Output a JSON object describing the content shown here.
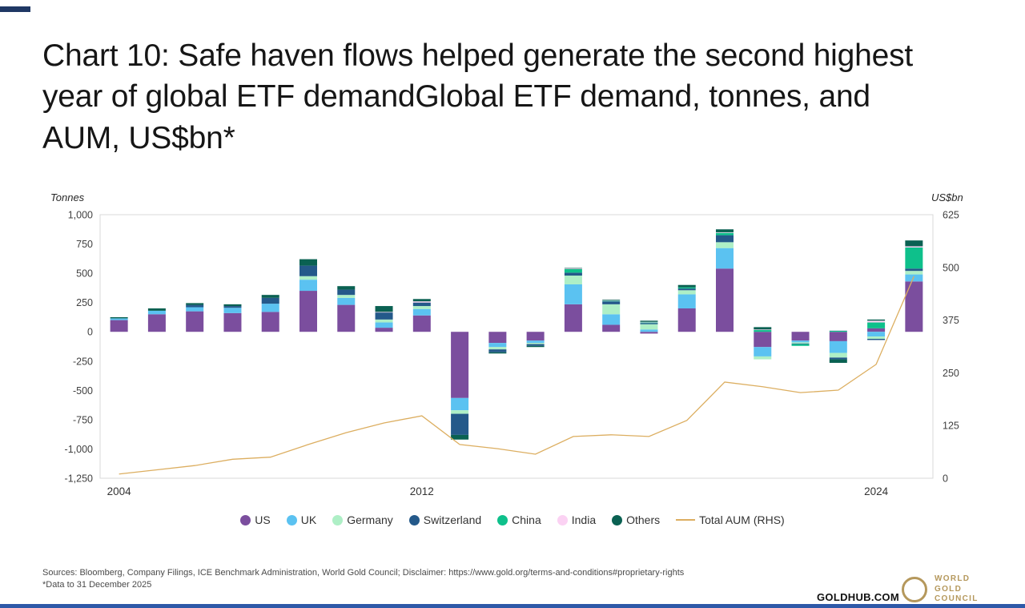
{
  "page": {
    "title": "Chart 10: Safe haven flows helped generate the second highest year of global ETF demandGlobal ETF demand, tonnes, and AUM, US$bn*",
    "footer": {
      "sources": "Sources: Bloomberg, Company Filings, ICE Benchmark Administration, World Gold Council; Disclaimer: https://www.gold.org/terms-and-conditions#proprietary-rights",
      "note": "*Data to 31 December 2025",
      "site": "GOLDHUB.COM",
      "logo_lines": [
        "WORLD",
        "GOLD",
        "COUNCIL"
      ]
    },
    "colors": {
      "top_accent": "#1f3864",
      "bottom_accent": "#2e59a8",
      "logo_gold": "#b5985c"
    }
  },
  "chart_data": {
    "type": "bar",
    "subtype": "stacked-bars-with-line-overlay",
    "title": "Chart 10: Safe haven flows helped generate the second highest year of global ETF demand",
    "subtitle": "Global ETF demand, tonnes, and AUM, US$bn*",
    "grid": false,
    "legend_position": "bottom",
    "left_axis": {
      "label": "Tonnes",
      "min": -1250,
      "max": 1000,
      "ticks": [
        1000,
        750,
        500,
        250,
        0,
        -250,
        -500,
        -750,
        -1000,
        -1250
      ]
    },
    "right_axis": {
      "label": "US$bn",
      "min": 0,
      "max": 625,
      "ticks": [
        625,
        500,
        375,
        250,
        125,
        0
      ]
    },
    "categories": [
      "2004",
      "2005",
      "2006",
      "2007",
      "2008",
      "2009",
      "2010",
      "2011",
      "2012",
      "2013",
      "2014",
      "2015",
      "2016",
      "2017",
      "2018",
      "2019",
      "2020",
      "2021",
      "2022",
      "2023",
      "2024",
      "2025"
    ],
    "x_tick_labels": [
      {
        "index": 0,
        "label": "2004"
      },
      {
        "index": 8,
        "label": "2012"
      },
      {
        "index": 20,
        "label": "2024"
      }
    ],
    "series": [
      {
        "name": "US",
        "color": "#7b4e9e",
        "values": [
          100,
          150,
          175,
          160,
          170,
          350,
          230,
          35,
          140,
          -565,
          -95,
          -75,
          235,
          60,
          -15,
          200,
          540,
          -130,
          -75,
          -80,
          30,
          430
        ]
      },
      {
        "name": "UK",
        "color": "#5bc2f1",
        "values": [
          15,
          30,
          35,
          45,
          70,
          95,
          60,
          45,
          55,
          -105,
          -35,
          -20,
          170,
          90,
          20,
          120,
          175,
          -80,
          -15,
          -100,
          -40,
          60
        ]
      },
      {
        "name": "Germany",
        "color": "#aeefc6",
        "values": [
          0,
          0,
          0,
          0,
          0,
          30,
          25,
          25,
          25,
          -30,
          -20,
          -10,
          75,
          85,
          45,
          35,
          50,
          -25,
          -10,
          -40,
          -20,
          30
        ]
      },
      {
        "name": "Switzerland",
        "color": "#24598a",
        "values": [
          0,
          0,
          20,
          15,
          50,
          90,
          45,
          60,
          30,
          -180,
          -25,
          -15,
          25,
          25,
          10,
          15,
          60,
          0,
          -5,
          -15,
          -10,
          20
        ]
      },
      {
        "name": "China",
        "color": "#0ec08b",
        "values": [
          0,
          0,
          0,
          0,
          0,
          0,
          0,
          0,
          0,
          0,
          0,
          0,
          30,
          5,
          5,
          10,
          20,
          15,
          -15,
          10,
          50,
          180
        ]
      },
      {
        "name": "India",
        "color": "#fbd2f3",
        "values": [
          0,
          0,
          0,
          0,
          0,
          0,
          0,
          5,
          10,
          0,
          0,
          0,
          5,
          5,
          5,
          0,
          5,
          5,
          0,
          5,
          15,
          10
        ]
      },
      {
        "name": "Others",
        "color": "#0a6152",
        "values": [
          10,
          20,
          15,
          15,
          25,
          55,
          30,
          50,
          20,
          -40,
          -10,
          -10,
          5,
          5,
          10,
          20,
          25,
          20,
          0,
          -30,
          10,
          50
        ]
      }
    ],
    "line_series": {
      "name": "Total AUM (RHS)",
      "color": "#dcae60",
      "values": [
        10,
        20,
        30,
        45,
        50,
        80,
        108,
        131,
        148,
        80,
        70,
        57,
        99,
        103,
        99,
        137,
        228,
        217,
        203,
        209,
        270,
        479
      ]
    }
  }
}
